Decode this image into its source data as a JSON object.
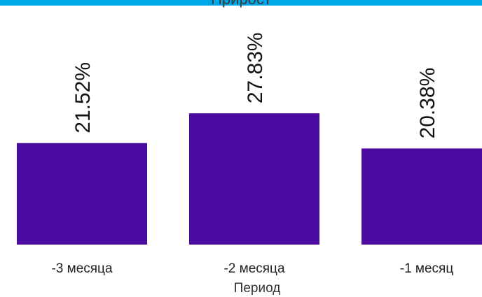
{
  "colors": {
    "bar": "#4B0AA0",
    "top_strip": "#00A8E8",
    "tick_text": "#222222",
    "label_text": "#111111"
  },
  "chart_data": {
    "type": "bar",
    "title": "Прирост",
    "xlabel": "Период",
    "ylabel": "",
    "categories": [
      "-3 месяца",
      "-2 месяца",
      "-1 месяц"
    ],
    "values": [
      21.52,
      27.83,
      20.38
    ],
    "data_labels": [
      "21.52%",
      "27.83%",
      "20.38%"
    ],
    "ylim": [
      0,
      40
    ],
    "grid": false,
    "legend": "none"
  }
}
